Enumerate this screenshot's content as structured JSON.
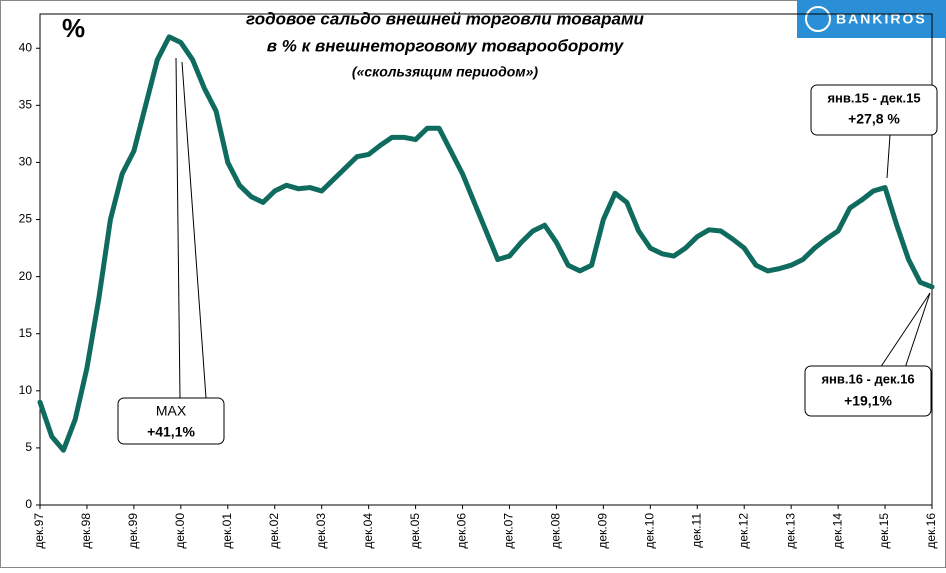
{
  "chart_data": {
    "type": "line",
    "title": "годовое сальдо внешней  торговли товарами",
    "subtitle": "в % к внешнеторговому  товарообороту",
    "note": "(«скользящим периодом»)",
    "y_label": "%",
    "logo": "BANKIROS",
    "annotations": [
      {
        "period": "MAX",
        "text": "+41,1%"
      },
      {
        "period": "янв.15 - дек.15",
        "text": "+27,8 %"
      },
      {
        "period": "янв.16 - дек.16",
        "text": "+19,1%"
      }
    ],
    "categories": [
      "дек.97",
      null,
      null,
      null,
      "дек.98",
      null,
      null,
      null,
      "дек.99",
      null,
      null,
      null,
      "дек.00",
      null,
      null,
      null,
      "дек.01",
      null,
      null,
      null,
      "дек.02",
      null,
      null,
      null,
      "дек.03",
      null,
      null,
      null,
      "дек.04",
      null,
      null,
      null,
      "дек.05",
      null,
      null,
      null,
      "дек.06",
      null,
      null,
      null,
      "дек.07",
      null,
      null,
      null,
      "дек.08",
      null,
      null,
      null,
      "дек.09",
      null,
      null,
      null,
      "дек.10",
      null,
      null,
      null,
      "дек.11",
      null,
      null,
      null,
      "дек.12",
      null,
      null,
      null,
      "дек.13",
      null,
      null,
      null,
      "дек.14",
      null,
      null,
      null,
      "дек.15",
      null,
      null,
      null,
      "дек.16"
    ],
    "series": [
      {
        "name": "сальдо",
        "color": "#0f6b5e",
        "values": [
          9,
          6,
          4.8,
          7.5,
          12,
          18,
          25,
          29,
          31,
          35,
          39,
          41,
          40.5,
          39,
          36.5,
          34.5,
          30,
          28,
          27,
          26.5,
          27.5,
          28,
          27.7,
          27.8,
          27.5,
          28.5,
          29.5,
          30.5,
          30.7,
          31.5,
          32.2,
          32.2,
          32,
          33,
          33,
          31,
          29,
          26.5,
          24,
          21.5,
          21.8,
          23,
          24,
          24.5,
          23,
          21,
          20.5,
          21,
          25,
          27.3,
          26.5,
          24,
          22.5,
          22,
          21.8,
          22.5,
          23.5,
          24.1,
          24,
          23.3,
          22.5,
          21,
          20.5,
          20.7,
          21,
          21.5,
          22.5,
          23.3,
          24,
          26,
          26.7,
          27.5,
          27.8,
          24.5,
          21.5,
          19.5,
          19.1
        ]
      }
    ],
    "ylim": [
      0,
      43
    ],
    "yticks": [
      0,
      5,
      10,
      15,
      20,
      25,
      30,
      35,
      40
    ],
    "grid": false
  }
}
